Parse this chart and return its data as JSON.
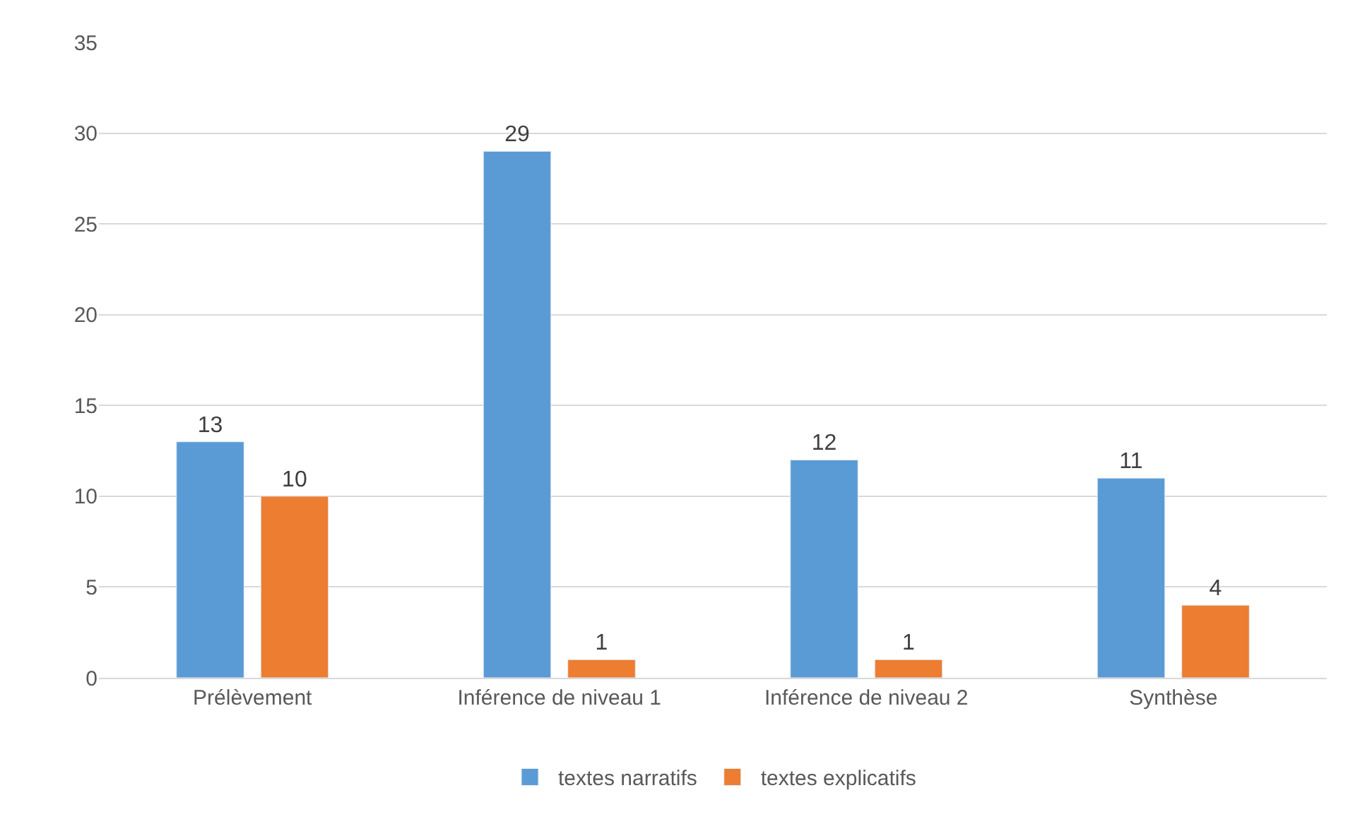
{
  "chart_data": {
    "type": "bar",
    "categories": [
      "Prélèvement",
      "Inférence de niveau 1",
      "Inférence de niveau 2",
      "Synthèse"
    ],
    "series": [
      {
        "name": "textes narratifs",
        "color": "#5b9bd5",
        "values": [
          13,
          29,
          12,
          11
        ]
      },
      {
        "name": "textes explicatifs",
        "color": "#ed7d31",
        "values": [
          10,
          1,
          1,
          4
        ]
      }
    ],
    "ylim": [
      0,
      35
    ],
    "yticks": [
      0,
      5,
      10,
      15,
      20,
      25,
      30,
      35
    ],
    "grid": "y",
    "legend": "bottom",
    "data_labels": true
  }
}
